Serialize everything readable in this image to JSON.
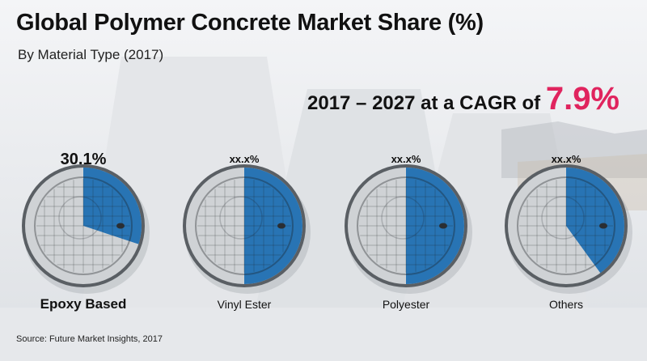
{
  "header": {
    "title": "Global Polymer Concrete Market Share (%)",
    "subtitle": "By Material Type (2017)"
  },
  "cagr": {
    "prefix": "2017 – 2027 at a CAGR",
    "of_word": "of",
    "value": "7.9%"
  },
  "colors": {
    "share": "#2874b4",
    "cover_gray": "#cfd2d5",
    "accent": "#e0245e"
  },
  "source": "Source: Future Market Insights, 2017",
  "chart_data": {
    "type": "pie",
    "categories": [
      "Epoxy Based",
      "Vinyl Ester",
      "Polyester",
      "Others"
    ],
    "values": [
      30.1,
      null,
      null,
      null
    ],
    "value_labels": [
      "30.1%",
      "xx.x%",
      "xx.x%",
      "xx.x%"
    ],
    "approx_shares": [
      0.3,
      0.5,
      0.5,
      0.4
    ],
    "title": "Global Polymer Concrete Market Share (%)",
    "subtitle": "By Material Type (2017)"
  }
}
